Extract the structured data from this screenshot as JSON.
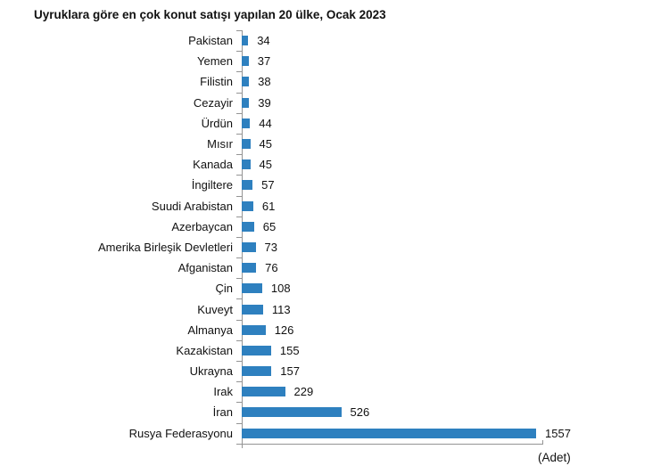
{
  "title": "Uyruklara göre en çok konut satışı yapılan 20 ülke, Ocak 2023",
  "unit_label": "(Adet)",
  "colors": {
    "bar": "#2e80bf",
    "axis": "#949494",
    "text": "#111111"
  },
  "chart_data": {
    "type": "bar",
    "orientation": "horizontal",
    "title": "Uyruklara göre en çok konut satışı yapılan 20 ülke, Ocak 2023",
    "categories": [
      "Pakistan",
      "Yemen",
      "Filistin",
      "Cezayir",
      "Ürdün",
      "Mısır",
      "Kanada",
      "İngiltere",
      "Suudi Arabistan",
      "Azerbaycan",
      "Amerika Birleşik Devletleri",
      "Afganistan",
      "Çin",
      "Kuveyt",
      "Almanya",
      "Kazakistan",
      "Ukrayna",
      "Irak",
      "İran",
      "Rusya Federasyonu"
    ],
    "values": [
      34,
      37,
      38,
      39,
      44,
      45,
      45,
      57,
      61,
      65,
      73,
      76,
      108,
      113,
      126,
      155,
      157,
      229,
      526,
      1557
    ],
    "data_labels": true,
    "xlabel": "(Adet)",
    "xlim": [
      0,
      1600
    ],
    "grid": false,
    "legend": false,
    "order": "ascending from top to bottom"
  }
}
